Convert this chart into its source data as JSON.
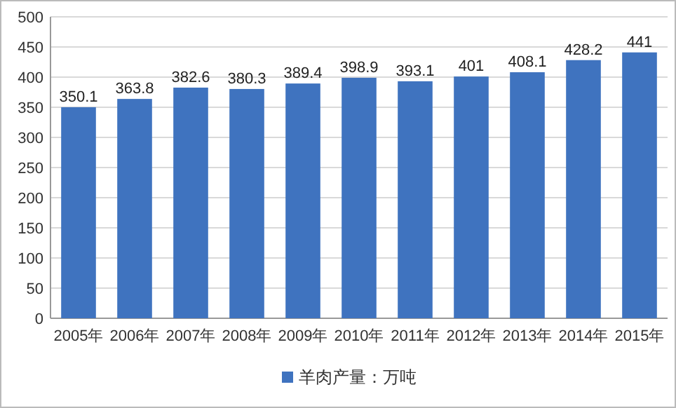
{
  "chart_data": {
    "type": "bar",
    "categories": [
      "2005年",
      "2006年",
      "2007年",
      "2008年",
      "2009年",
      "2010年",
      "2011年",
      "2012年",
      "2013年",
      "2014年",
      "2015年"
    ],
    "series": [
      {
        "name": "羊肉产量：万吨",
        "color": "#3f73bf",
        "values": [
          350.1,
          363.8,
          382.6,
          380.3,
          389.4,
          398.9,
          393.1,
          401,
          408.1,
          428.2,
          441
        ]
      }
    ],
    "ylim": [
      0,
      500
    ],
    "yticks": [
      0,
      50,
      100,
      150,
      200,
      250,
      300,
      350,
      400,
      450,
      500
    ],
    "grid": "y",
    "legend": "bottom",
    "data_labels": true
  }
}
